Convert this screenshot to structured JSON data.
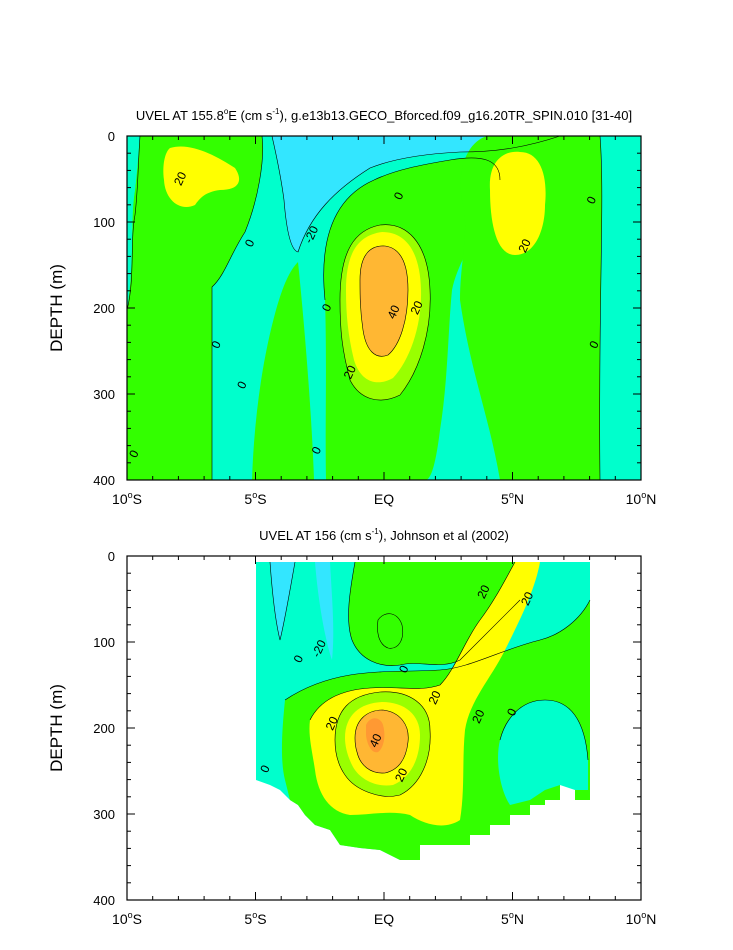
{
  "colors": {
    "lev_m30_m20": "#33e6ff",
    "lev_m20_0": "#00ffcc",
    "lev_0_20": "#33ff00",
    "lev_20_30": "#99ff00",
    "lev_30_40": "#ffff00",
    "lev_40_50": "#ffb733",
    "lev_50_60": "#ff9933",
    "background": "#ffffff"
  },
  "chart_data": [
    {
      "type": "contour",
      "title": "UVEL AT 155.8°E (cm s⁻¹), g.e13b13.GECO_Bforced.f09_g16.20TR_SPIN.010 [31-40]",
      "title_parts": {
        "pre": "UVEL AT 155.8",
        "deg": "o",
        "mid1": "E (cm s",
        "exp": "-1",
        "post": "), g.e13b13.GECO_Bforced.f09_g16.20TR_SPIN.010 [31-40]"
      },
      "ylabel": "DEPTH (m)",
      "xlim": [
        -10,
        10
      ],
      "ylim": [
        0,
        400
      ],
      "yticks": [
        "0",
        "100",
        "200",
        "300",
        "400"
      ],
      "ytick_values": [
        0,
        100,
        200,
        300,
        400
      ],
      "xticks": [
        {
          "num": "10",
          "deg": "o",
          "dir": "S",
          "value": -10
        },
        {
          "num": "5",
          "deg": "o",
          "dir": "S",
          "value": -5
        },
        {
          "num": "EQ",
          "deg": "",
          "dir": "",
          "value": 0
        },
        {
          "num": "5",
          "deg": "o",
          "dir": "N",
          "value": 5
        },
        {
          "num": "10",
          "deg": "o",
          "dir": "N",
          "value": 10
        }
      ],
      "contour_labels": [
        {
          "text": "20",
          "x": -7.9,
          "y": 50
        },
        {
          "text": "0",
          "x": -5.2,
          "y": 125
        },
        {
          "text": "-20",
          "x": -2.8,
          "y": 115
        },
        {
          "text": "0",
          "x": 0.6,
          "y": 70
        },
        {
          "text": "0",
          "x": -2.2,
          "y": 200
        },
        {
          "text": "40",
          "x": 0.4,
          "y": 205
        },
        {
          "text": "20",
          "x": 1.3,
          "y": 200
        },
        {
          "text": "20",
          "x": -1.3,
          "y": 275
        },
        {
          "text": "20",
          "x": 5.5,
          "y": 128
        },
        {
          "text": "0",
          "x": 8.1,
          "y": 75
        },
        {
          "text": "0",
          "x": -5.5,
          "y": 290
        },
        {
          "text": "0",
          "x": -6.5,
          "y": 243
        },
        {
          "text": "0",
          "x": -2.6,
          "y": 366
        },
        {
          "text": "0",
          "x": -9.7,
          "y": 370
        },
        {
          "text": "0",
          "x": 8.2,
          "y": 243
        }
      ]
    },
    {
      "type": "contour",
      "title": "UVEL AT 156 (cm s⁻¹), Johnson et al (2002)",
      "title_parts": {
        "pre": "UVEL AT 156 (cm s",
        "exp": "-1",
        "post": "), Johnson et al (2002)"
      },
      "ylabel": "DEPTH (m)",
      "xlim": [
        -10,
        10
      ],
      "ylim": [
        0,
        400
      ],
      "yticks": [
        "0",
        "100",
        "200",
        "300",
        "400"
      ],
      "ytick_values": [
        0,
        100,
        200,
        300,
        400
      ],
      "xticks": [
        {
          "num": "10",
          "deg": "o",
          "dir": "S",
          "value": -10
        },
        {
          "num": "5",
          "deg": "o",
          "dir": "S",
          "value": -5
        },
        {
          "num": "EQ",
          "deg": "",
          "dir": "",
          "value": 0
        },
        {
          "num": "5",
          "deg": "o",
          "dir": "N",
          "value": 5
        },
        {
          "num": "10",
          "deg": "o",
          "dir": "N",
          "value": 10
        }
      ],
      "contour_labels": [
        {
          "text": "20",
          "x": 3.9,
          "y": 42
        },
        {
          "text": "20",
          "x": 5.6,
          "y": 50
        },
        {
          "text": "-20",
          "x": -2.5,
          "y": 108
        },
        {
          "text": "0",
          "x": -3.3,
          "y": 120
        },
        {
          "text": "0",
          "x": 0.8,
          "y": 132
        },
        {
          "text": "20",
          "x": 2.0,
          "y": 165
        },
        {
          "text": "20",
          "x": -2.0,
          "y": 195
        },
        {
          "text": "40",
          "x": -0.3,
          "y": 215
        },
        {
          "text": "20",
          "x": 3.7,
          "y": 187
        },
        {
          "text": "0",
          "x": 5.0,
          "y": 182
        },
        {
          "text": "20",
          "x": 0.7,
          "y": 255
        },
        {
          "text": "0",
          "x": -4.6,
          "y": 248
        }
      ]
    }
  ]
}
